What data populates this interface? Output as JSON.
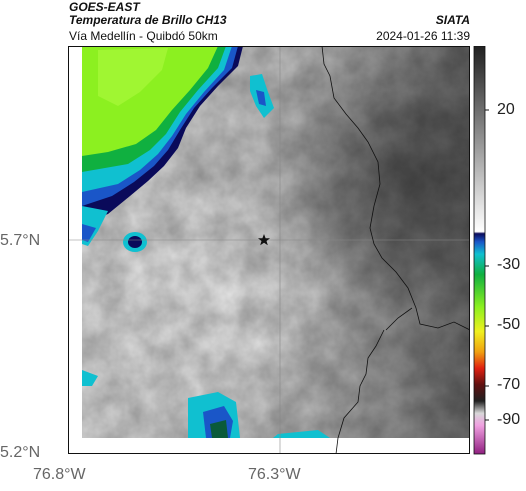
{
  "header": {
    "satellite": "GOES-EAST",
    "product": "Temperatura de Brillo CH13",
    "agency": "SIATA",
    "region": "Vía Medellín - Quibdó 50km",
    "timestamp": "2024-01-26 11:39"
  },
  "map": {
    "lat_ticks": [
      "5.7°N",
      "5.2°N"
    ],
    "lon_ticks": [
      "76.8°W",
      "76.3°W"
    ],
    "marker_icon": "star-icon"
  },
  "colorbar": {
    "labels": [
      "20",
      "-30",
      "-50",
      "-70",
      "-90"
    ]
  }
}
